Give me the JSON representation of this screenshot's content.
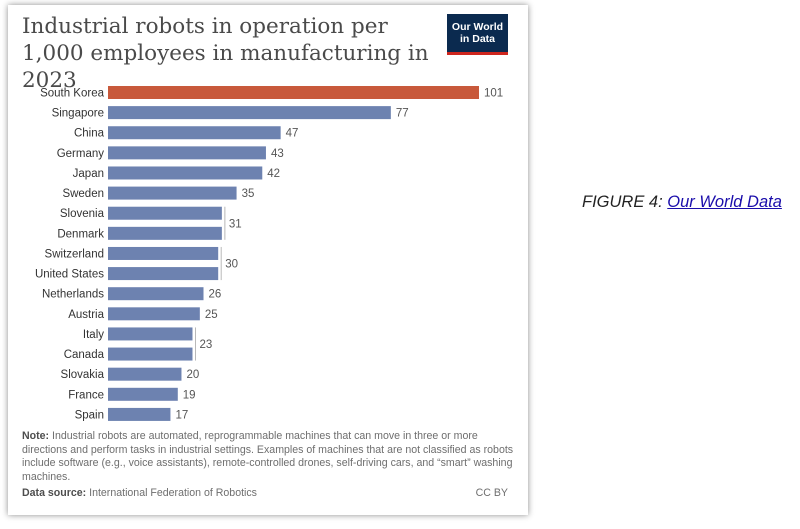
{
  "figure": {
    "title": "Industrial robots in operation per 1,000 employees in manufacturing in 2023",
    "logo_line1": "Our World",
    "logo_line2": "in Data",
    "note_label": "Note:",
    "note_text": "Industrial robots are automated, reprogrammable machines that can move in three or more directions and perform tasks in industrial settings. Examples of machines that are not classified as robots include software (e.g., voice assistants), remote-controlled drones, self-driving cars, and “smart” washing machines.",
    "source_label": "Data source:",
    "source_text": "International Federation of Robotics",
    "license": "CC BY"
  },
  "caption": {
    "prefix": "FIGURE 4: ",
    "link_text": "Our World Data"
  },
  "colors": {
    "highlight_bar": "#c8593b",
    "default_bar": "#6d82b0",
    "label": "#333333",
    "value": "#555555"
  },
  "chart_data": {
    "type": "bar",
    "orientation": "horizontal",
    "title": "Industrial robots in operation per 1,000 employees in manufacturing in 2023",
    "xlim": [
      0,
      101
    ],
    "grid": false,
    "categories": [
      "South Korea",
      "Singapore",
      "China",
      "Germany",
      "Japan",
      "Sweden",
      "Slovenia",
      "Denmark",
      "Switzerland",
      "United States",
      "Netherlands",
      "Austria",
      "Italy",
      "Canada",
      "Slovakia",
      "France",
      "Spain"
    ],
    "values": [
      101,
      77,
      47,
      43,
      42,
      35,
      31,
      31,
      30,
      30,
      26,
      25,
      23,
      23,
      20,
      19,
      17
    ],
    "highlighted": [
      "South Korea"
    ],
    "value_labels": [
      {
        "text": "101",
        "rows": [
          0
        ]
      },
      {
        "text": "77",
        "rows": [
          1
        ]
      },
      {
        "text": "47",
        "rows": [
          2
        ]
      },
      {
        "text": "43",
        "rows": [
          3
        ]
      },
      {
        "text": "42",
        "rows": [
          4
        ]
      },
      {
        "text": "35",
        "rows": [
          5
        ]
      },
      {
        "text": "31",
        "rows": [
          6,
          7
        ]
      },
      {
        "text": "30",
        "rows": [
          8,
          9
        ]
      },
      {
        "text": "26",
        "rows": [
          10
        ]
      },
      {
        "text": "25",
        "rows": [
          11
        ]
      },
      {
        "text": "23",
        "rows": [
          12,
          13
        ]
      },
      {
        "text": "20",
        "rows": [
          14
        ]
      },
      {
        "text": "19",
        "rows": [
          15
        ]
      },
      {
        "text": "17",
        "rows": [
          16
        ]
      }
    ]
  }
}
